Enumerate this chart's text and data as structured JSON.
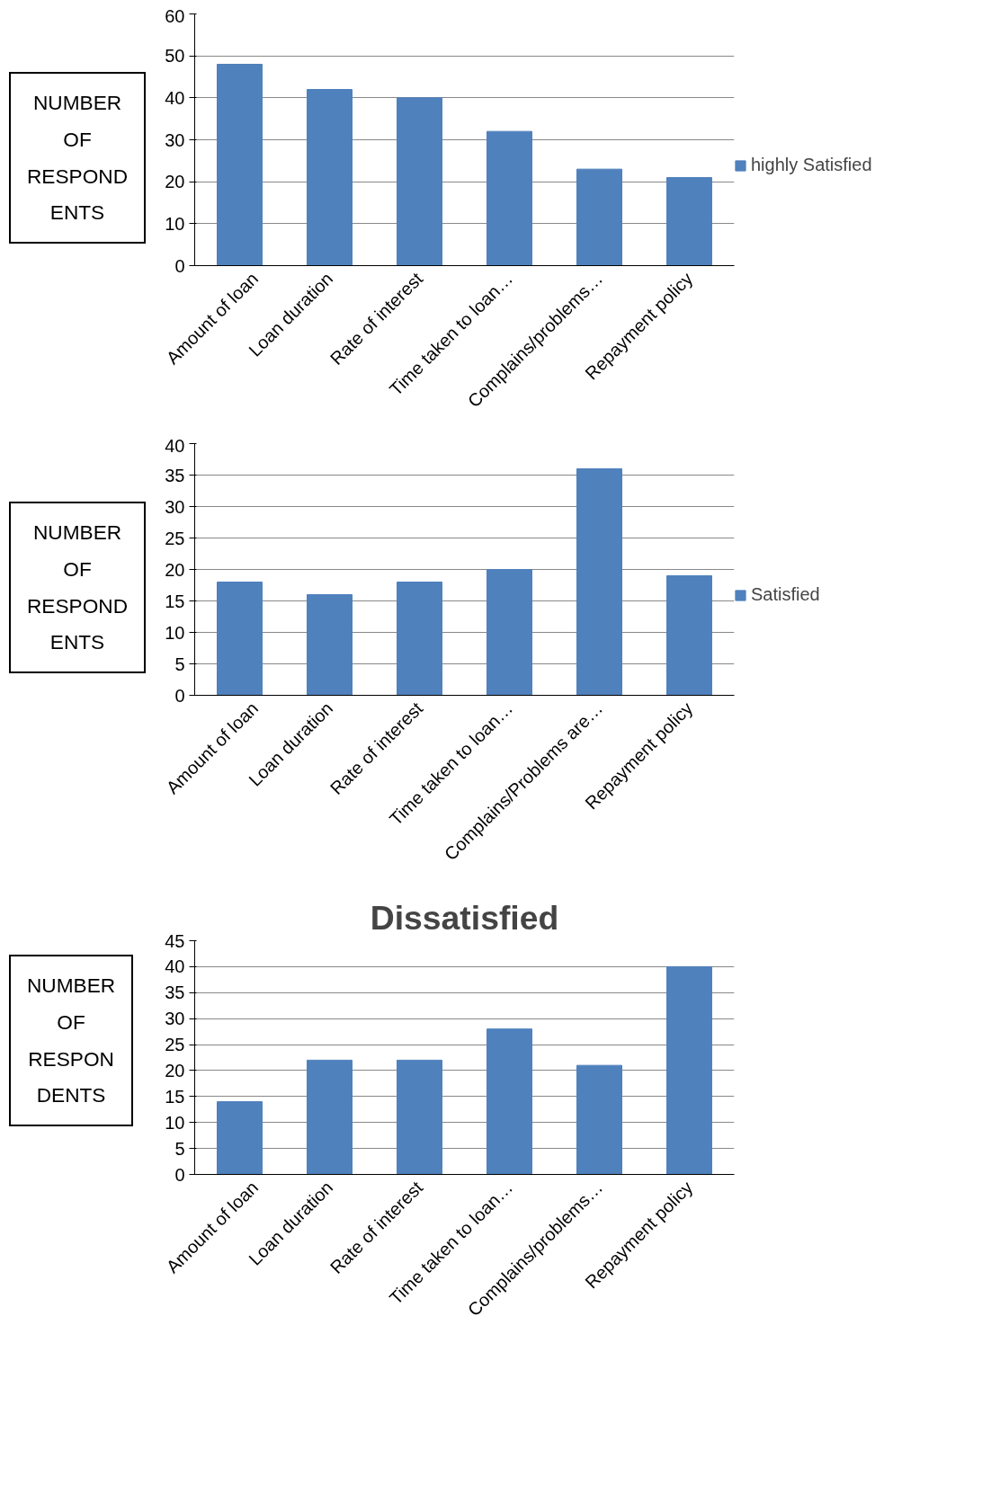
{
  "chart_data": [
    {
      "type": "bar",
      "ylabel": "NUMBER OF RESPOND ENTS",
      "categories": [
        "Amount of loan",
        "Loan duration",
        "Rate of interest",
        "Time taken to loan…",
        "Complains/problems…",
        "Repayment policy"
      ],
      "series": [
        {
          "name": "highly Satisfied",
          "color": "#4f81bd",
          "values": [
            48,
            42,
            40,
            32,
            23,
            21
          ]
        }
      ],
      "ylim": [
        0,
        60
      ],
      "yticks": [
        0,
        10,
        20,
        30,
        40,
        50,
        60
      ],
      "grid": "y",
      "legend": "right"
    },
    {
      "type": "bar",
      "ylabel": "NUMBER OF RESPOND ENTS",
      "categories": [
        "Amount of loan",
        "Loan duration",
        "Rate of interest",
        "Time taken to loan…",
        "Complains/Problems are…",
        "Repayment policy"
      ],
      "series": [
        {
          "name": "Satisfied",
          "color": "#4f81bd",
          "values": [
            18,
            16,
            18,
            20,
            36,
            19
          ]
        }
      ],
      "ylim": [
        0,
        40
      ],
      "yticks": [
        0,
        5,
        10,
        15,
        20,
        25,
        30,
        35,
        40
      ],
      "grid": "y",
      "legend": "right"
    },
    {
      "type": "bar",
      "title": "Dissatisfied",
      "ylabel": "NUMBER OF RESPON DENTS",
      "categories": [
        "Amount of loan",
        "Loan duration",
        "Rate of interest",
        "Time taken to loan…",
        "Complains/problems…",
        "Repayment policy"
      ],
      "series": [
        {
          "color": "#4f81bd",
          "values": [
            14,
            22,
            22,
            28,
            21,
            40
          ]
        }
      ],
      "ylim": [
        0,
        45
      ],
      "yticks": [
        0,
        5,
        10,
        15,
        20,
        25,
        30,
        35,
        40,
        45
      ],
      "grid": "y"
    }
  ]
}
